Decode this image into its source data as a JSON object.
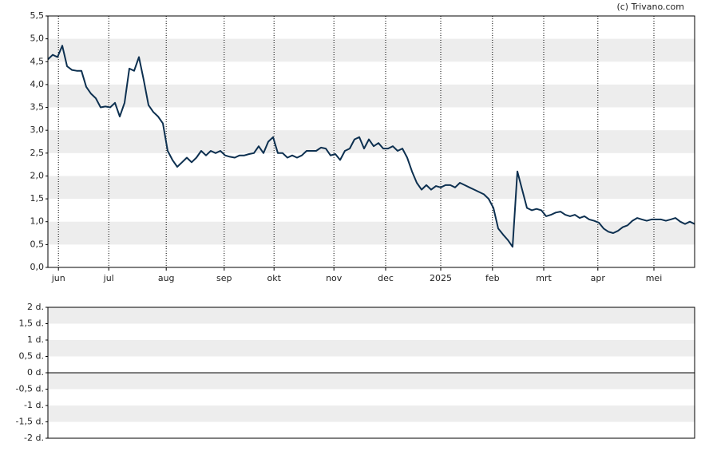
{
  "chart_data": [
    {
      "type": "line",
      "credit": "(c) Trivano.com",
      "xlim": [
        0,
        135
      ],
      "xticks": [
        {
          "value": 2.2,
          "label": "jun"
        },
        {
          "value": 12.7,
          "label": "jul"
        },
        {
          "value": 24.7,
          "label": "aug"
        },
        {
          "value": 36.8,
          "label": "sep"
        },
        {
          "value": 47.2,
          "label": "okt"
        },
        {
          "value": 59.7,
          "label": "nov"
        },
        {
          "value": 70.5,
          "label": "dec"
        },
        {
          "value": 82,
          "label": "2025"
        },
        {
          "value": 92.8,
          "label": "feb"
        },
        {
          "value": 103.5,
          "label": "mrt"
        },
        {
          "value": 114.8,
          "label": "apr"
        },
        {
          "value": 126.5,
          "label": "mei"
        }
      ],
      "ylim": [
        0,
        5.5
      ],
      "yticks": [
        {
          "value": 0,
          "label": "0,0"
        },
        {
          "value": 0.5,
          "label": "0,5"
        },
        {
          "value": 1,
          "label": "1,0"
        },
        {
          "value": 1.5,
          "label": "1,5"
        },
        {
          "value": 2,
          "label": "2,0"
        },
        {
          "value": 2.5,
          "label": "2,5"
        },
        {
          "value": 3,
          "label": "3,0"
        },
        {
          "value": 3.5,
          "label": "3,5"
        },
        {
          "value": 4,
          "label": "4,0"
        },
        {
          "value": 4.5,
          "label": "4,5"
        },
        {
          "value": 5,
          "label": "5,0"
        },
        {
          "value": 5.5,
          "label": "5,5"
        }
      ],
      "grid": true,
      "series": [
        {
          "color": "#0d3050",
          "values": [
            4.55,
            4.65,
            4.6,
            4.85,
            4.4,
            4.32,
            4.3,
            4.3,
            3.95,
            3.8,
            3.7,
            3.5,
            3.52,
            3.5,
            3.6,
            3.3,
            3.6,
            4.35,
            4.3,
            4.6,
            4.1,
            3.55,
            3.4,
            3.3,
            3.15,
            2.55,
            2.35,
            2.2,
            2.3,
            2.4,
            2.3,
            2.4,
            2.55,
            2.45,
            2.55,
            2.5,
            2.55,
            2.45,
            2.42,
            2.4,
            2.45,
            2.45,
            2.48,
            2.5,
            2.65,
            2.5,
            2.75,
            2.85,
            2.5,
            2.5,
            2.4,
            2.45,
            2.4,
            2.45,
            2.55,
            2.55,
            2.55,
            2.62,
            2.6,
            2.45,
            2.48,
            2.35,
            2.55,
            2.6,
            2.8,
            2.85,
            2.6,
            2.8,
            2.65,
            2.72,
            2.6,
            2.6,
            2.65,
            2.55,
            2.6,
            2.4,
            2.1,
            1.85,
            1.7,
            1.8,
            1.7,
            1.78,
            1.75,
            1.8,
            1.8,
            1.75,
            1.85,
            1.8,
            1.75,
            1.7,
            1.65,
            1.6,
            1.5,
            1.3,
            0.85,
            0.72,
            0.6,
            0.45,
            2.1,
            1.7,
            1.3,
            1.25,
            1.28,
            1.25,
            1.12,
            1.15,
            1.2,
            1.22,
            1.15,
            1.12,
            1.15,
            1.08,
            1.12,
            1.05,
            1.02,
            0.98,
            0.85,
            0.78,
            0.75,
            0.8,
            0.88,
            0.92,
            1.02,
            1.08,
            1.05,
            1.02,
            1.05,
            1.05,
            1.05,
            1.02,
            1.05,
            1.08,
            1.0,
            0.95,
            1.0,
            0.95
          ]
        }
      ]
    },
    {
      "type": "line",
      "ylim": [
        -2,
        2
      ],
      "yticks": [
        {
          "value": -2,
          "label": "-2 d."
        },
        {
          "value": -1.5,
          "label": "-1,5 d."
        },
        {
          "value": -1,
          "label": "-1 d."
        },
        {
          "value": -0.5,
          "label": "-0,5 d."
        },
        {
          "value": 0,
          "label": "0 d."
        },
        {
          "value": 0.5,
          "label": "0,5 d."
        },
        {
          "value": 1,
          "label": "1 d."
        },
        {
          "value": 1.5,
          "label": "1,5 d."
        },
        {
          "value": 2,
          "label": "2 d."
        }
      ],
      "grid": true,
      "series": []
    }
  ]
}
